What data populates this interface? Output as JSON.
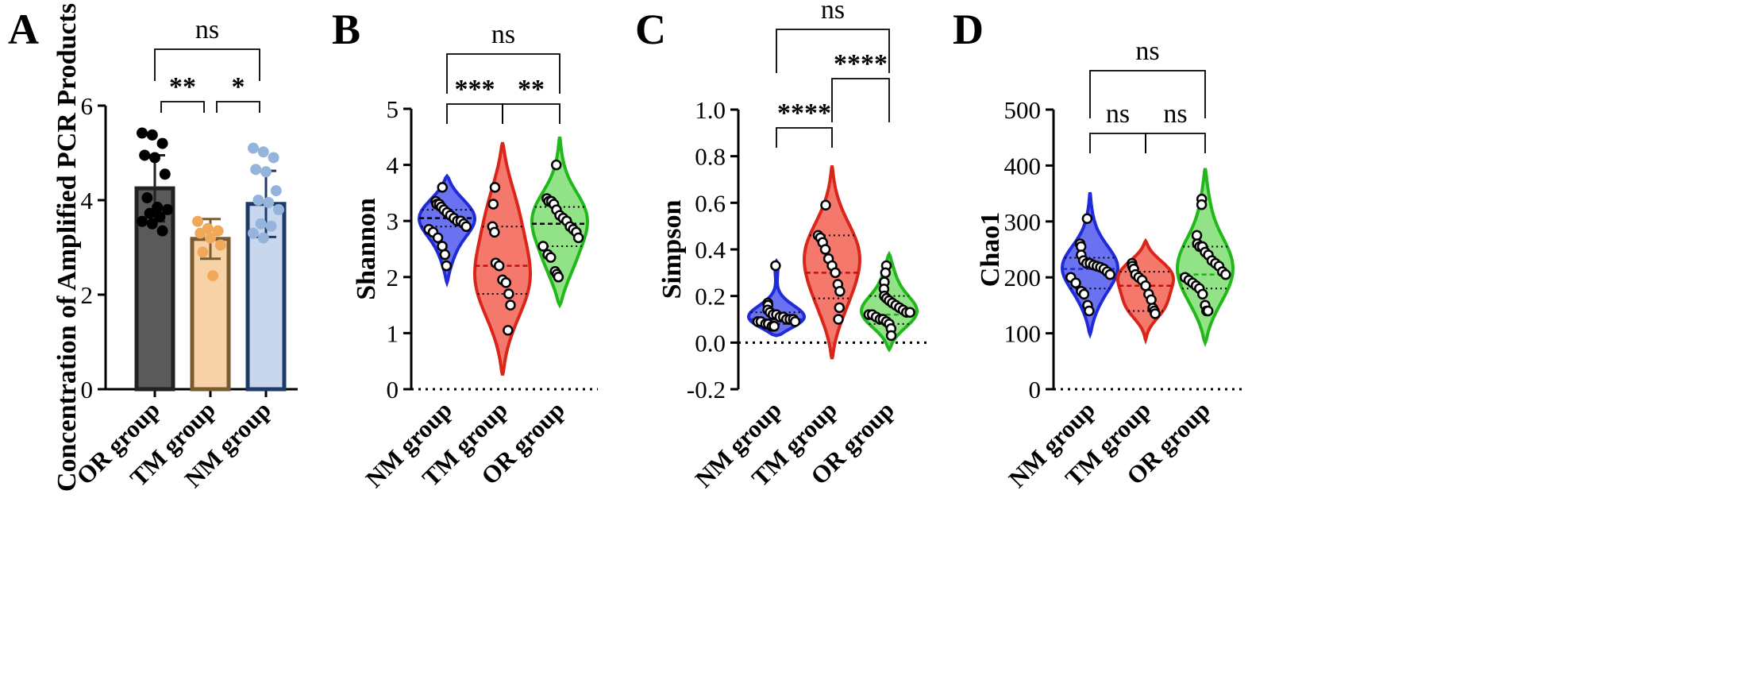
{
  "chart_data": [
    {
      "panel": "A",
      "type": "bar",
      "ylabel": "Concentration of Amplified PCR Products",
      "ylim": [
        0,
        6
      ],
      "yticks": [
        0,
        2,
        4,
        6
      ],
      "categories": [
        "OR group",
        "TM group",
        "NM group"
      ],
      "colors": [
        "#5a5a5a",
        "#f7d2a6",
        "#c8d7ee"
      ],
      "edge_colors": [
        "#222222",
        "#7a5a30",
        "#1e3a66"
      ],
      "point_colors": [
        "#000000",
        "#f0a95a",
        "#95b4dc"
      ],
      "means": [
        4.25,
        3.18,
        3.92
      ],
      "sd": [
        0.7,
        0.42,
        0.7
      ],
      "points": [
        [
          5.42,
          5.38,
          5.2,
          4.95,
          4.9,
          4.55,
          4.05,
          3.85,
          3.8,
          3.72,
          3.65,
          3.55,
          3.5,
          3.35
        ],
        [
          3.55,
          3.4,
          3.35,
          3.3,
          3.2,
          3.05,
          2.9,
          2.4
        ],
        [
          5.1,
          5.02,
          4.9,
          4.65,
          4.6,
          4.2,
          4.0,
          3.95,
          3.8,
          3.5,
          3.45,
          3.3,
          3.2
        ]
      ],
      "comparisons": [
        {
          "from": 0,
          "to": 1,
          "label": "**"
        },
        {
          "from": 1,
          "to": 2,
          "label": "*"
        },
        {
          "from": 0,
          "to": 2,
          "label": "ns"
        }
      ]
    },
    {
      "panel": "B",
      "type": "violin",
      "ylabel": "Shannon",
      "ylim": [
        0,
        5
      ],
      "yticks": [
        0,
        1,
        2,
        3,
        4,
        5
      ],
      "categories": [
        "NM group",
        "TM group",
        "OR group"
      ],
      "colors": [
        "#5b63f0",
        "#f4695c",
        "#86e07a"
      ],
      "edge_colors": [
        "#1f2bd8",
        "#d9251a",
        "#22b81c"
      ],
      "median_colors": [
        "#000000",
        "#c01010",
        "#000000"
      ],
      "quartile_colors": [
        "#000000",
        "#000000",
        "#000000"
      ],
      "ranges": [
        [
          1.9,
          3.8
        ],
        [
          0.25,
          4.4
        ],
        [
          1.5,
          4.5
        ]
      ],
      "median": [
        3.05,
        2.2,
        2.95
      ],
      "quartiles": [
        [
          2.9,
          3.2
        ],
        [
          1.7,
          2.9
        ],
        [
          2.55,
          3.25
        ]
      ],
      "points": [
        [
          3.6,
          3.35,
          3.3,
          3.3,
          3.25,
          3.2,
          3.15,
          3.1,
          3.05,
          3.0,
          3.0,
          2.95,
          2.9,
          2.85,
          2.8,
          2.7,
          2.55,
          2.4,
          2.2
        ],
        [
          3.6,
          3.3,
          2.9,
          2.8,
          2.25,
          2.2,
          1.95,
          1.9,
          1.7,
          1.5,
          1.05
        ],
        [
          4.0,
          3.4,
          3.35,
          3.35,
          3.3,
          3.2,
          3.1,
          3.05,
          3.0,
          2.9,
          2.85,
          2.8,
          2.7,
          2.55,
          2.4,
          2.35,
          2.1,
          2.05,
          2.0
        ]
      ],
      "comparisons": [
        {
          "from": 0,
          "to": 1,
          "label": "***"
        },
        {
          "from": 1,
          "to": 2,
          "label": "**"
        },
        {
          "from": 0,
          "to": 2,
          "label": "ns"
        }
      ]
    },
    {
      "panel": "C",
      "type": "violin",
      "ylabel": "Simpson",
      "ylim": [
        -0.2,
        1.0
      ],
      "yticks": [
        -0.2,
        0.0,
        0.2,
        0.4,
        0.6,
        0.8,
        1.0
      ],
      "ytick_labels": [
        "-0.2",
        "0.0",
        "0.2",
        "0.4",
        "0.6",
        "0.8",
        "1.0"
      ],
      "categories": [
        "NM group",
        "TM group",
        "OR group"
      ],
      "colors": [
        "#5b63f0",
        "#f4695c",
        "#86e07a"
      ],
      "edge_colors": [
        "#1f2bd8",
        "#d9251a",
        "#22b81c"
      ],
      "median_colors": [
        "#1f2bd8",
        "#c01010",
        "#1fae1a"
      ],
      "quartile_colors": [
        "#000000",
        "#000000",
        "#000000"
      ],
      "ranges": [
        [
          0.03,
          0.35
        ],
        [
          -0.07,
          0.76
        ],
        [
          -0.03,
          0.38
        ]
      ],
      "median": [
        0.1,
        0.3,
        0.12
      ],
      "quartiles": [
        [
          0.08,
          0.13
        ],
        [
          0.19,
          0.46
        ],
        [
          0.08,
          0.2
        ]
      ],
      "points": [
        [
          0.33,
          0.17,
          0.16,
          0.14,
          0.13,
          0.12,
          0.12,
          0.11,
          0.11,
          0.1,
          0.1,
          0.1,
          0.09,
          0.09,
          0.09,
          0.08,
          0.08,
          0.07,
          0.07
        ],
        [
          0.59,
          0.46,
          0.45,
          0.43,
          0.4,
          0.36,
          0.33,
          0.3,
          0.25,
          0.22,
          0.15,
          0.1
        ],
        [
          0.33,
          0.3,
          0.26,
          0.23,
          0.2,
          0.19,
          0.18,
          0.17,
          0.16,
          0.15,
          0.14,
          0.13,
          0.13,
          0.12,
          0.12,
          0.11,
          0.1,
          0.1,
          0.09,
          0.08,
          0.06,
          0.03
        ]
      ],
      "comparisons": [
        {
          "from": 0,
          "to": 1,
          "label": "****"
        },
        {
          "from": 1,
          "to": 2,
          "label": "****"
        },
        {
          "from": 0,
          "to": 2,
          "label": "ns"
        }
      ]
    },
    {
      "panel": "D",
      "type": "violin",
      "ylabel": "Chao1",
      "ylim": [
        0,
        500
      ],
      "yticks": [
        0,
        100,
        200,
        300,
        400,
        500
      ],
      "categories": [
        "NM group",
        "TM group",
        "OR group"
      ],
      "colors": [
        "#5b63f0",
        "#f4695c",
        "#86e07a"
      ],
      "edge_colors": [
        "#1f2bd8",
        "#d9251a",
        "#22b81c"
      ],
      "median_colors": [
        "#1f2bd8",
        "#c01010",
        "#1fae1a"
      ],
      "quartile_colors": [
        "#000000",
        "#000000",
        "#000000"
      ],
      "ranges": [
        [
          98,
          352
        ],
        [
          88,
          265
        ],
        [
          83,
          395
        ]
      ],
      "median": [
        215,
        185,
        205
      ],
      "quartiles": [
        [
          180,
          235
        ],
        [
          140,
          210
        ],
        [
          180,
          255
        ]
      ],
      "points": [
        [
          305,
          260,
          255,
          240,
          230,
          225,
          225,
          222,
          220,
          218,
          215,
          210,
          205,
          200,
          190,
          175,
          170,
          150,
          140
        ],
        [
          225,
          220,
          215,
          205,
          200,
          195,
          185,
          170,
          160,
          145,
          140,
          135
        ],
        [
          340,
          330,
          275,
          260,
          255,
          255,
          245,
          240,
          230,
          225,
          220,
          210,
          205,
          200,
          195,
          190,
          185,
          180,
          170,
          150,
          140,
          140
        ]
      ],
      "comparisons": [
        {
          "from": 0,
          "to": 1,
          "label": "ns"
        },
        {
          "from": 1,
          "to": 2,
          "label": "ns"
        },
        {
          "from": 0,
          "to": 2,
          "label": "ns"
        }
      ]
    }
  ]
}
